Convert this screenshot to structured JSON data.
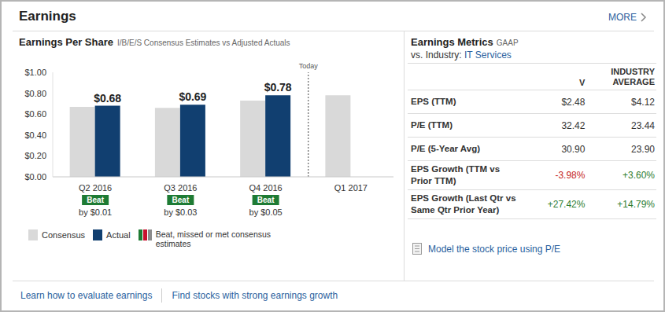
{
  "header": {
    "title": "Earnings",
    "more": "MORE"
  },
  "chart_data": {
    "type": "bar",
    "title": "Earnings Per Share",
    "subtitle": "I/B/E/S Consensus Estimates vs Adjusted Actuals",
    "categories": [
      "Q2 2016",
      "Q3 2016",
      "Q4 2016",
      "Q1 2017"
    ],
    "series": [
      {
        "name": "Consensus",
        "color": "#d9d9d9",
        "values": [
          0.67,
          0.66,
          0.73,
          0.78
        ]
      },
      {
        "name": "Actual",
        "color": "#113f70",
        "values": [
          0.68,
          0.69,
          0.78,
          null
        ],
        "value_labels": [
          "$0.68",
          "$0.69",
          "$0.78",
          null
        ]
      }
    ],
    "data_labels": true,
    "ylim": [
      0,
      1
    ],
    "yticks": [
      {
        "value": 0,
        "label": "$0.00"
      },
      {
        "value": 0.2,
        "label": "$0.20"
      },
      {
        "value": 0.4,
        "label": "$0.40"
      },
      {
        "value": 0.6,
        "label": "$0.60"
      },
      {
        "value": 0.8,
        "label": "$0.80"
      },
      {
        "value": 1,
        "label": "$1.00"
      }
    ],
    "grid": false,
    "results": [
      {
        "label": "Beat",
        "detail": "by $0.01"
      },
      {
        "label": "Beat",
        "detail": "by $0.03"
      },
      {
        "label": "Beat",
        "detail": "by $0.05"
      },
      null
    ],
    "results_legend": {
      "text": "Beat, missed or met consensus estimates",
      "colors": [
        "#1e7b34",
        "#c8102e",
        "#8c8c8c"
      ]
    },
    "annotations": [
      {
        "text": "Today",
        "after": "Q4 2016"
      }
    ]
  },
  "metrics": {
    "title": "Earnings Metrics",
    "basis": "GAAP",
    "industry_prefix": "vs. Industry:",
    "industry": "IT Services",
    "columns": [
      "V",
      "INDUSTRY AVERAGE"
    ],
    "rows": [
      [
        "EPS (TTM)",
        "$2.48",
        "$4.12"
      ],
      [
        "P/E (TTM)",
        "32.42",
        "23.44"
      ],
      [
        "P/E (5-Year Avg)",
        "30.90",
        "23.90"
      ],
      [
        "EPS Growth (TTM vs Prior TTM)",
        "-3.98%",
        "+3.60%"
      ],
      [
        "EPS Growth (Last Qtr vs Same Qtr Prior Year)",
        "+27.42%",
        "+14.79%"
      ]
    ]
  },
  "model_link": "Model the stock price using P/E",
  "footer_links": [
    "Learn how to evaluate earnings",
    "Find stocks with strong earnings growth"
  ]
}
